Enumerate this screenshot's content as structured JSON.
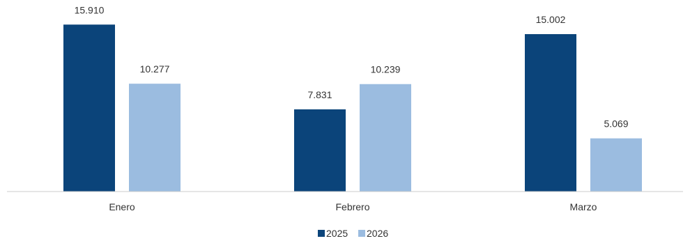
{
  "chart_data": {
    "type": "bar",
    "categories": [
      "Enero",
      "Febrero",
      "Marzo"
    ],
    "series": [
      {
        "name": "2025",
        "values": [
          15910,
          7831,
          15002
        ],
        "labels": [
          "15.910",
          "7.831",
          "15.002"
        ],
        "color": "#0b447a"
      },
      {
        "name": "2026",
        "values": [
          10277,
          10239,
          5069
        ],
        "labels": [
          "10.277",
          "10.239",
          "5.069"
        ],
        "color": "#9bbce0"
      }
    ],
    "title": "",
    "xlabel": "",
    "ylabel": "",
    "ylim": [
      0,
      18000
    ],
    "grid": false,
    "legend_position": "bottom"
  }
}
